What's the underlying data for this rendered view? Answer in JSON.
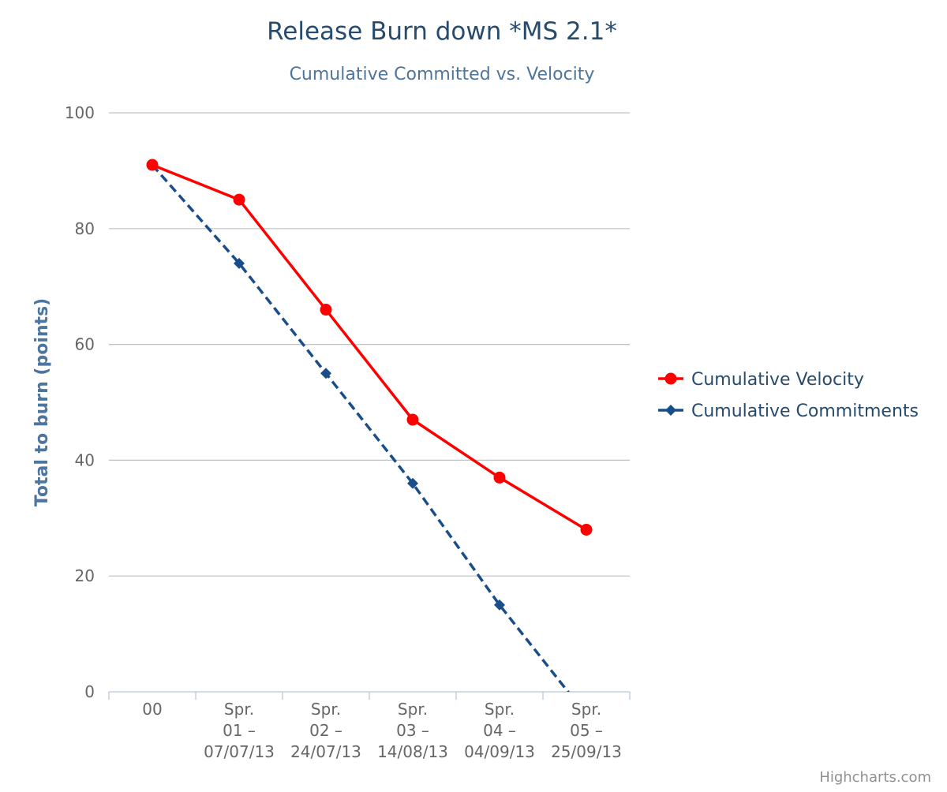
{
  "chart_data": {
    "type": "line",
    "title": "Release Burn down *MS 2.1*",
    "subtitle": "Cumulative Committed vs. Velocity",
    "ylabel": "Total to burn (points)",
    "xlabel": "",
    "ylim": [
      0,
      100
    ],
    "yticks": [
      0,
      20,
      40,
      60,
      80,
      100
    ],
    "grid": true,
    "legend_position": "right",
    "categories": [
      [
        "00"
      ],
      [
        "Spr.",
        "01 –",
        "07/07/13"
      ],
      [
        "Spr.",
        "02 –",
        "24/07/13"
      ],
      [
        "Spr.",
        "03 –",
        "14/08/13"
      ],
      [
        "Spr.",
        "04 –",
        "04/09/13"
      ],
      [
        "Spr.",
        "05 –",
        "25/09/13"
      ]
    ],
    "series": [
      {
        "name": "Cumulative Velocity",
        "values": [
          91,
          85,
          66,
          47,
          37,
          28
        ],
        "color": "#ff0000",
        "marker": "circle",
        "dash": "solid"
      },
      {
        "name": "Cumulative Commitments",
        "values": [
          91,
          74,
          55,
          36,
          15,
          -4
        ],
        "color": "#1a4e8a",
        "marker": "diamond",
        "dash": "dashed"
      }
    ]
  },
  "colors": {
    "title": "#274b6d",
    "subtitle": "#4d759e",
    "axis_title": "#4d759e",
    "grid": "#c0c0c0",
    "axis_line": "#c0d0e0"
  },
  "credits": "Highcharts.com"
}
